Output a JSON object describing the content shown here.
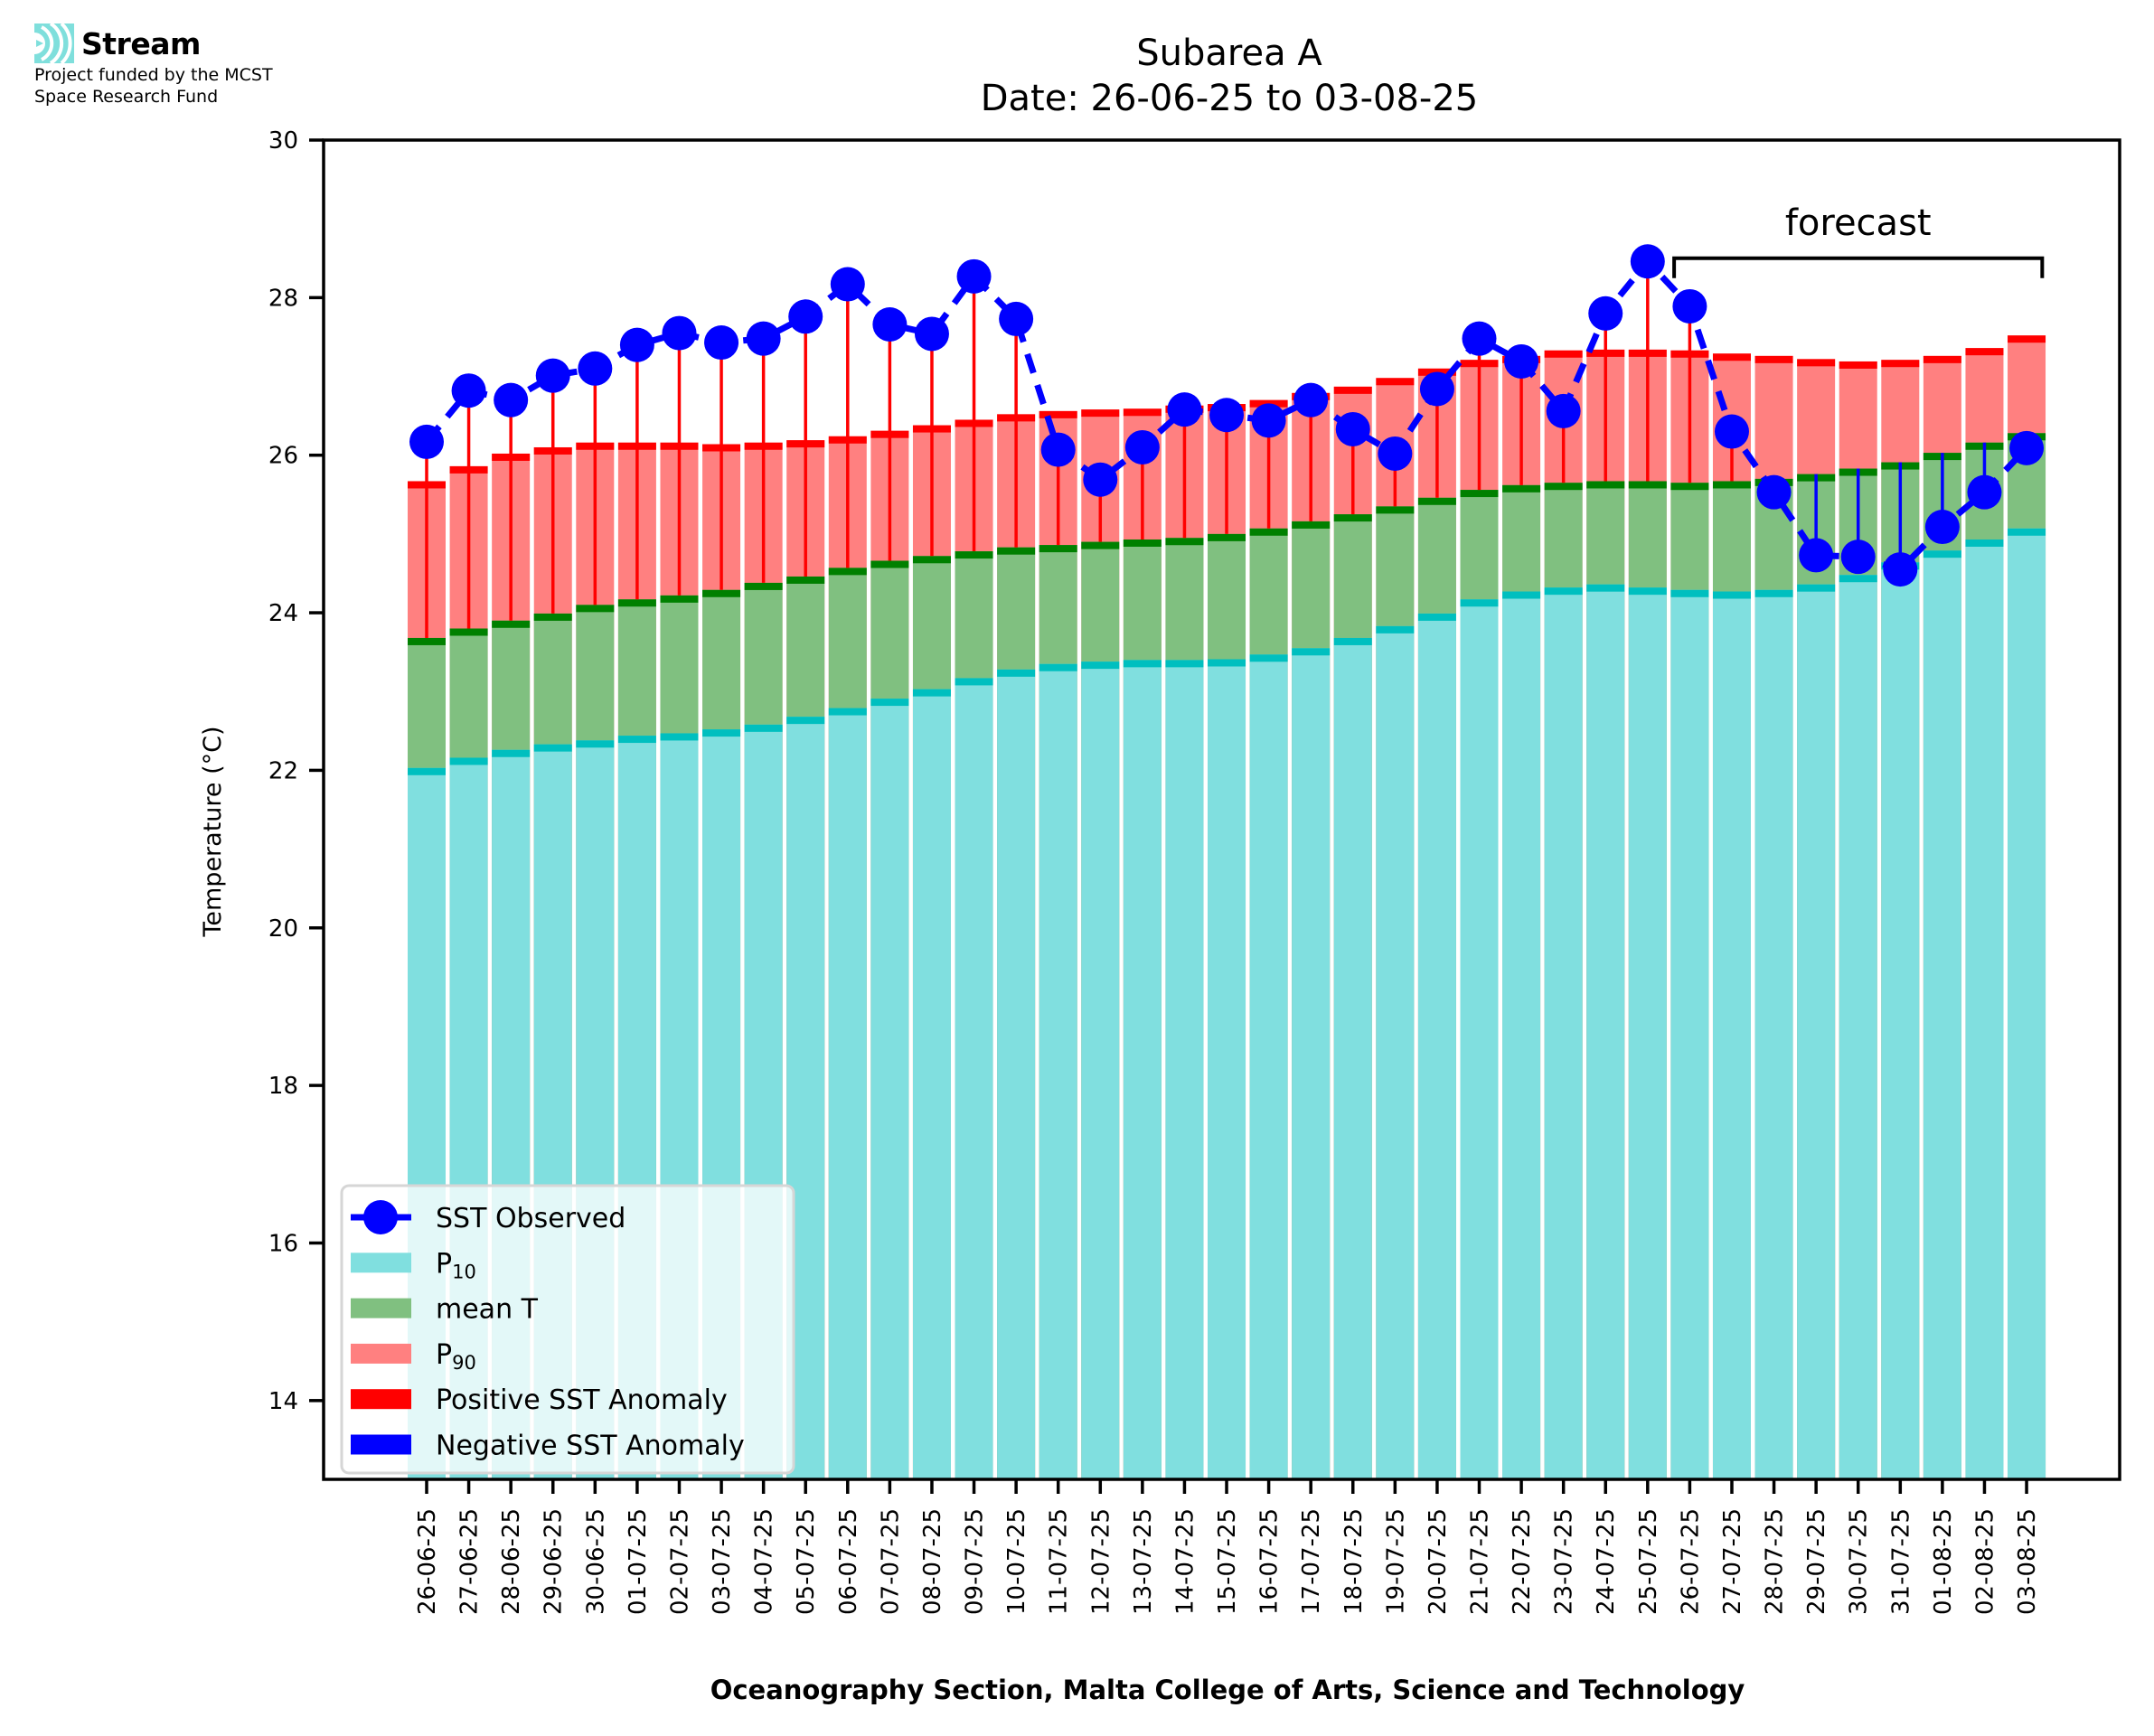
{
  "logo": {
    "name": "Stream",
    "subtitle_line1": "Project funded by the MCST",
    "subtitle_line2": "Space Research Fund",
    "icon": "stream-waves-icon",
    "color": "#7fdfdc"
  },
  "colors": {
    "p10": "#80dfdf",
    "p10_edge": "#00bfbf",
    "mean": "#80c080",
    "mean_edge": "#008000",
    "p90": "#ff8080",
    "p90_edge": "#ff0000",
    "observed": "#0000ff",
    "positive_anomaly": "#ff0000",
    "negative_anomaly": "#0000ff"
  },
  "chart_data": {
    "type": "bar",
    "title": "Subarea A",
    "subtitle": "Date: 26-06-25 to 03-08-25",
    "xlabel": "Oceanography Section, Malta College of Arts, Science and Technology",
    "ylabel": "Temperature (°C)",
    "ylim": [
      13,
      30
    ],
    "yticks": [
      14,
      16,
      18,
      20,
      22,
      24,
      26,
      28,
      30
    ],
    "grid": false,
    "legend_position": "lower-left",
    "annotation": {
      "text": "forecast",
      "start_category": "26-07-25",
      "end_category": "03-08-25",
      "level": 28.5
    },
    "categories": [
      "26-06-25",
      "27-06-25",
      "28-06-25",
      "29-06-25",
      "30-06-25",
      "01-07-25",
      "02-07-25",
      "03-07-25",
      "04-07-25",
      "05-07-25",
      "06-07-25",
      "07-07-25",
      "08-07-25",
      "09-07-25",
      "10-07-25",
      "11-07-25",
      "12-07-25",
      "13-07-25",
      "14-07-25",
      "15-07-25",
      "16-07-25",
      "17-07-25",
      "18-07-25",
      "19-07-25",
      "20-07-25",
      "21-07-25",
      "22-07-25",
      "23-07-25",
      "24-07-25",
      "25-07-25",
      "26-07-25",
      "27-07-25",
      "28-07-25",
      "29-07-25",
      "30-07-25",
      "31-07-25",
      "01-08-25",
      "02-08-25",
      "03-08-25"
    ],
    "series": [
      {
        "name": "P90",
        "legend_label": "P",
        "legend_sub": "90",
        "kind": "bar",
        "values": [
          25.67,
          25.86,
          26.02,
          26.1,
          26.16,
          26.16,
          26.16,
          26.14,
          26.16,
          26.19,
          26.24,
          26.31,
          26.38,
          26.45,
          26.52,
          26.56,
          26.58,
          26.59,
          26.63,
          26.65,
          26.7,
          26.79,
          26.87,
          26.98,
          27.1,
          27.21,
          27.26,
          27.33,
          27.34,
          27.34,
          27.33,
          27.29,
          27.26,
          27.22,
          27.19,
          27.21,
          27.26,
          27.36,
          27.52
        ]
      },
      {
        "name": "mean T",
        "legend_label": "mean T",
        "legend_sub": "",
        "kind": "bar",
        "values": [
          23.68,
          23.8,
          23.9,
          23.99,
          24.1,
          24.17,
          24.22,
          24.29,
          24.38,
          24.46,
          24.57,
          24.66,
          24.72,
          24.78,
          24.83,
          24.86,
          24.9,
          24.93,
          24.95,
          25.0,
          25.07,
          25.16,
          25.25,
          25.35,
          25.46,
          25.56,
          25.62,
          25.65,
          25.67,
          25.67,
          25.65,
          25.67,
          25.7,
          25.76,
          25.83,
          25.91,
          26.03,
          26.16,
          26.28
        ]
      },
      {
        "name": "P10",
        "legend_label": "P",
        "legend_sub": "10",
        "kind": "bar",
        "values": [
          22.03,
          22.16,
          22.26,
          22.33,
          22.38,
          22.44,
          22.47,
          22.52,
          22.58,
          22.68,
          22.79,
          22.91,
          23.03,
          23.17,
          23.28,
          23.35,
          23.38,
          23.4,
          23.4,
          23.41,
          23.47,
          23.55,
          23.68,
          23.83,
          23.99,
          24.17,
          24.27,
          24.32,
          24.36,
          24.32,
          24.29,
          24.27,
          24.29,
          24.36,
          24.48,
          24.64,
          24.79,
          24.93,
          25.07
        ]
      },
      {
        "name": "SST Observed",
        "legend_label": "SST Observed",
        "legend_sub": "",
        "kind": "line",
        "values": [
          26.17,
          26.82,
          26.7,
          27.01,
          27.1,
          27.4,
          27.55,
          27.43,
          27.48,
          27.76,
          28.17,
          27.66,
          27.54,
          28.27,
          27.73,
          26.07,
          25.69,
          26.1,
          26.58,
          26.51,
          26.44,
          26.7,
          26.33,
          26.02,
          26.84,
          27.48,
          27.19,
          26.56,
          27.8,
          28.46,
          27.89,
          26.3,
          25.53,
          24.73,
          24.71,
          24.55,
          25.09,
          25.53,
          26.09
        ]
      }
    ],
    "legend": [
      {
        "label": "SST Observed",
        "sub": "",
        "kind": "line-marker"
      },
      {
        "label": "P",
        "sub": "10",
        "kind": "patch-p10"
      },
      {
        "label": "mean T",
        "sub": "",
        "kind": "patch-mean"
      },
      {
        "label": "P",
        "sub": "90",
        "kind": "patch-p90"
      },
      {
        "label": "Positive SST Anomaly",
        "sub": "",
        "kind": "patch-pos"
      },
      {
        "label": "Negative SST Anomaly",
        "sub": "",
        "kind": "patch-neg"
      }
    ]
  }
}
